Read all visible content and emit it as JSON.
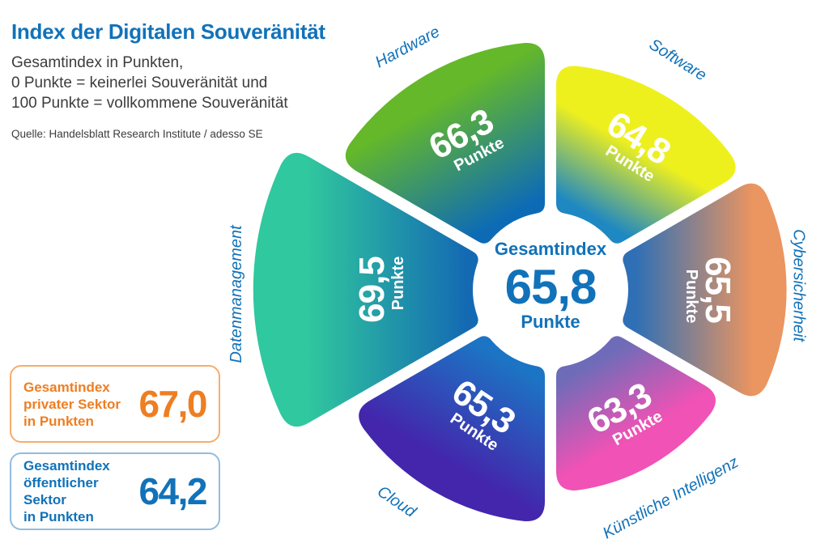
{
  "header": {
    "title": "Index der Digitalen Souveränität",
    "subtitle_lines": [
      "Gesamtindex in Punkten,",
      "0 Punkte = keinerlei Souveränität und",
      "100 Punkte = vollkommene Souveränität"
    ],
    "source": "Quelle: Handelsblatt Research Institute / adesso SE"
  },
  "chart_data": {
    "type": "pie",
    "variant": "polar-rose-wheel",
    "title": "Index der Digitalen Souveränität",
    "unit": "Punkte",
    "scale": {
      "min": 0,
      "max": 100,
      "note": "0 Punkte = keinerlei Souveränität, 100 Punkte = vollkommene Souveränität"
    },
    "center": {
      "label": "Gesamtindex",
      "value": 65.8,
      "value_label": "65,8",
      "unit": "Punkte"
    },
    "segments": [
      {
        "label": "Hardware",
        "value": 66.3,
        "value_label": "66,3",
        "unit": "Punkte",
        "color_outer": "#64B82A",
        "color_inner": "#0D6BB6"
      },
      {
        "label": "Software",
        "value": 64.8,
        "value_label": "64,8",
        "unit": "Punkte",
        "color_outer": "#EEF01E",
        "color_inner": "#1E88C2"
      },
      {
        "label": "Cybersicherheit",
        "value": 65.5,
        "value_label": "65,5",
        "unit": "Punkte",
        "color_outer": "#EB9560",
        "color_inner": "#2E6FB6"
      },
      {
        "label": "Künstliche Intelligenz",
        "value": 63.3,
        "value_label": "63,3",
        "unit": "Punkte",
        "color_outer": "#F152B5",
        "color_inner": "#6E6CB8"
      },
      {
        "label": "Cloud",
        "value": 65.3,
        "value_label": "65,3",
        "unit": "Punkte",
        "color_outer": "#4326AC",
        "color_inner": "#1C74C4"
      },
      {
        "label": "Datenmanagement",
        "value": 69.5,
        "value_label": "69,5",
        "unit": "Punkte",
        "color_outer": "#30C89E",
        "color_inner": "#146AB2"
      }
    ],
    "legend_position": "around-wheel",
    "grid": false
  },
  "sector_boxes": [
    {
      "lines": [
        "Gesamtindex",
        "privater Sektor",
        "in Punkten"
      ],
      "value": 67.0,
      "value_label": "67,0",
      "color": "#EE7E22"
    },
    {
      "lines": [
        "Gesamtindex",
        "öffentlicher Sektor",
        "in Punkten"
      ],
      "value": 64.2,
      "value_label": "64,2",
      "color": "#1172B9"
    }
  ],
  "colors": {
    "brand_blue": "#1172B9",
    "accent_orange": "#EE7E22",
    "text_dark": "#3C3C3C",
    "background": "#FFFFFF"
  }
}
